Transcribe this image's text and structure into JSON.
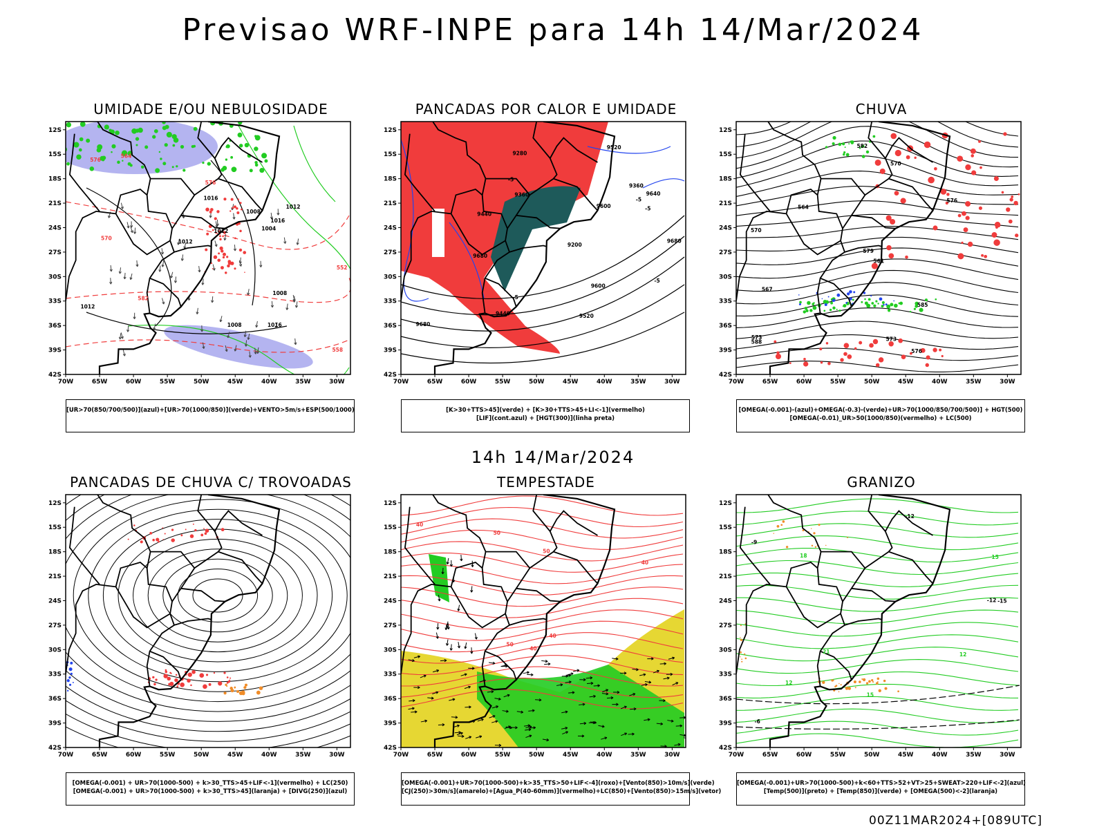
{
  "header": {
    "title": "Previsao WRF-INPE  para 14h 14/Mar/2024"
  },
  "mid_label": "14h 14/Mar/2024",
  "footer": "00Z11MAR2024+[089UTC]",
  "axes": {
    "lat_ticks": [
      "12S",
      "15S",
      "18S",
      "21S",
      "24S",
      "27S",
      "30S",
      "33S",
      "36S",
      "39S",
      "42S"
    ],
    "lon_ticks": [
      "70W",
      "65W",
      "60W",
      "55W",
      "50W",
      "45W",
      "40W",
      "35W",
      "30W"
    ]
  },
  "colors": {
    "red": "#f03c3c",
    "green": "#22cc22",
    "blue": "#2244ee",
    "lavender": "#b4b4f0",
    "darkteal": "#1e5a5a",
    "yellow": "#e6d733",
    "orange": "#f08c28"
  },
  "panels": [
    {
      "title": "UMIDADE E/OU NEBULOSIDADE",
      "legend": [
        "[UR>70(850/700/500)](azul)+[UR>70(1000/850)](verde)+VENTO>5m/s+ESP(500/1000)"
      ],
      "labels": [
        "1012",
        "1012",
        "1012",
        "1012",
        "1008",
        "1008",
        "1016",
        "1016",
        "1008",
        "1004",
        "1016",
        "576",
        "570",
        "558",
        "552",
        "564",
        "582",
        "576"
      ]
    },
    {
      "title": "PANCADAS POR CALOR E UMIDADE",
      "legend": [
        "[K>30+TTS>45](verde) + [K>30+TTS>45+LI<-1](vermelho)",
        "[LIF](cont.azul) + [HGT(300)](linha preta)"
      ],
      "labels": [
        "9680",
        "9680",
        "9640",
        "9680",
        "9600",
        "9520",
        "9440",
        "9360",
        "9280",
        "9200",
        "9600",
        "9520",
        "9440",
        "9360",
        "-5",
        "-5",
        "-5",
        "-5",
        "-5"
      ]
    },
    {
      "title": "CHUVA",
      "legend": [
        "[OMEGA(-0.001)-(azul)+OMEGA(-0.3)-(verde)+UR>70(1000/850/700/500)] + HGT(500)",
        "[OMEGA(-0.01)_UR>50(1000/850)(vermelho) + LC(500)"
      ],
      "labels": [
        "588",
        "585",
        "582",
        "579",
        "576",
        "573",
        "570",
        "567",
        "564",
        "561",
        "576",
        "573",
        "570"
      ]
    },
    {
      "title": "PANCADAS DE CHUVA C/ TROVOADAS",
      "legend": [
        "[OMEGA(-0.001) + UR>70(1000-500) + k>30_TTS>45+LIF<-1](vermelho) + LC(250)",
        "[OMEGA(-0.001) + UR>70(1000-500) + k>30_TTS>45](laranja) + [DIVG(250)](azul)"
      ],
      "labels": []
    },
    {
      "title": "TEMPESTADE",
      "legend": [
        "[OMEGA(-0.001)+UR>70(1000-500)+k>35_TTS>50+LIF<-4](roxo)+[Vento(850)>10m/s](verde)",
        "[CJ(250)>30m/s](amarelo)+[Agua_P(40-60mm)](vermelho)+LC(850)+[Vento(850)>15m/s](vetor)"
      ],
      "labels": [
        "40",
        "50",
        "40",
        "50",
        "40",
        "50",
        "40"
      ]
    },
    {
      "title": "GRANIZO",
      "legend": [
        "[OMEGA(-0.001)+UR>70(1000-500)+k<60+TTS>52+VT>25+SWEAT>220+LIF<-2](azul)",
        "[Temp(500)](preto) + [Temp(850)](verde) + [OMEGA(500)<-2](laranja)"
      ],
      "labels": [
        "-9",
        "-12",
        "-15",
        "12",
        "15",
        "18",
        "21",
        "-6",
        "-12",
        "12",
        "15"
      ]
    }
  ]
}
